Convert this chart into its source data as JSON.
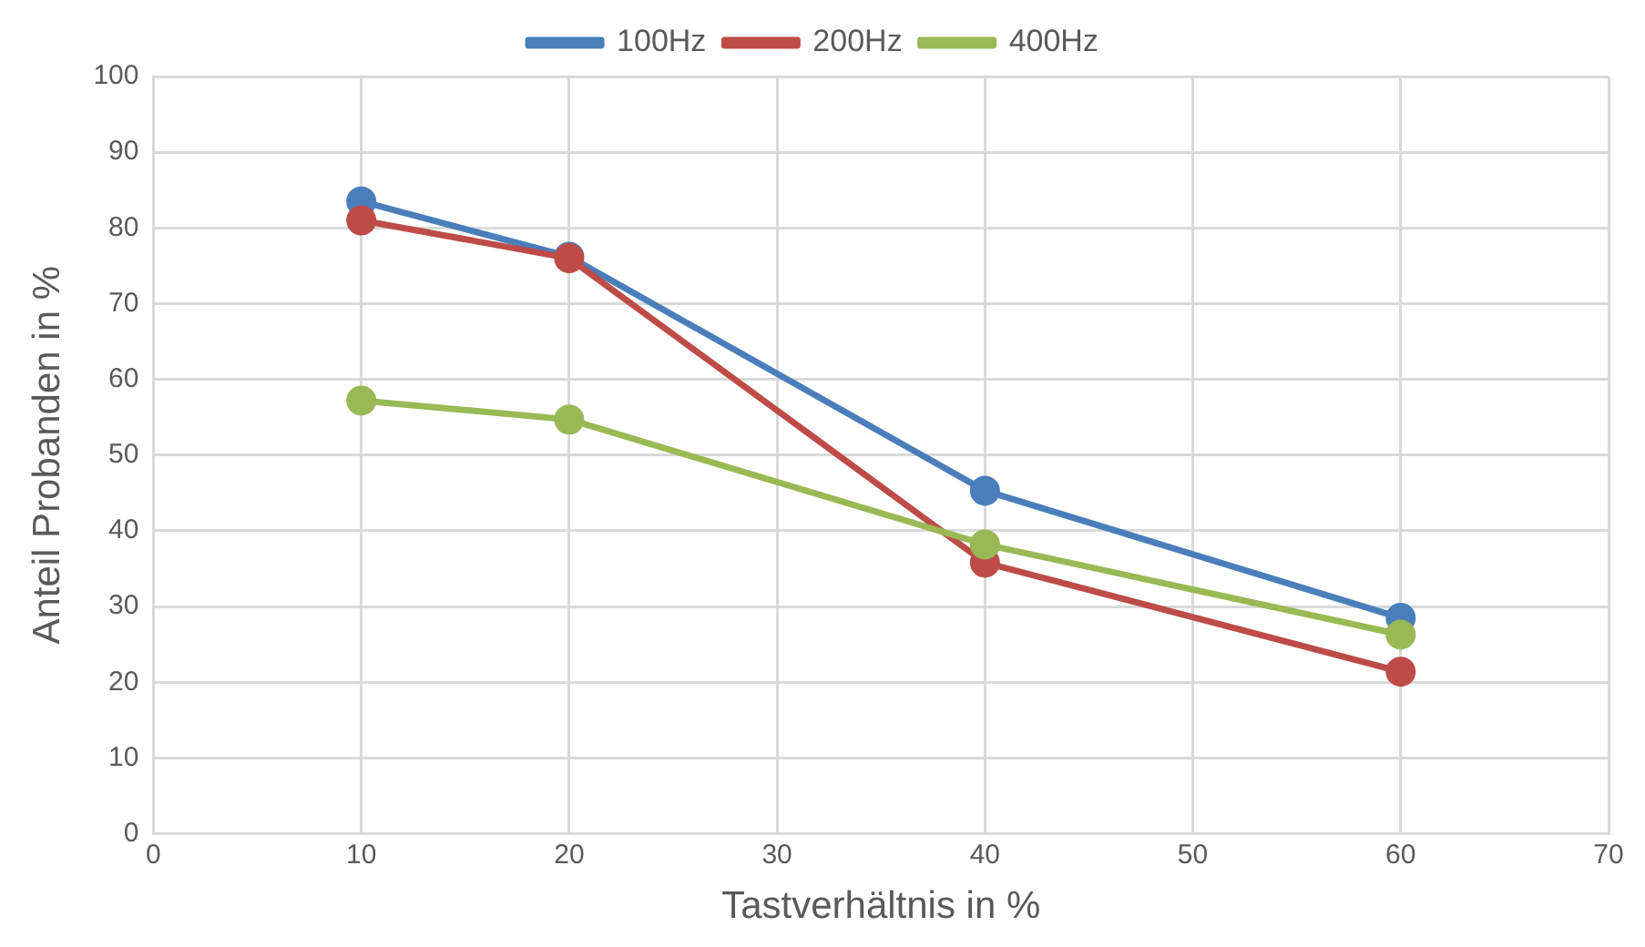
{
  "chart_data": {
    "type": "line",
    "xlabel": "Tastverhältnis in %",
    "ylabel": "Anteil Probanden in %",
    "x": [
      10,
      20,
      40,
      60
    ],
    "series": [
      {
        "name": "100Hz",
        "color": "#4a7ebb",
        "values": [
          83.5,
          76.2,
          45.3,
          28.5
        ]
      },
      {
        "name": "200Hz",
        "color": "#be4b48",
        "values": [
          81,
          76,
          35.8,
          21.4
        ]
      },
      {
        "name": "400Hz",
        "color": "#98b954",
        "values": [
          57.2,
          54.7,
          38.2,
          26.3
        ]
      }
    ],
    "xlim": [
      0,
      70
    ],
    "xticks": [
      0,
      10,
      20,
      30,
      40,
      50,
      60,
      70
    ],
    "ylim": [
      0,
      100
    ],
    "yticks": [
      0,
      10,
      20,
      30,
      40,
      50,
      60,
      70,
      80,
      90,
      100
    ],
    "grid": true,
    "legend": "top",
    "marker": "circle",
    "line_style": "solid"
  }
}
